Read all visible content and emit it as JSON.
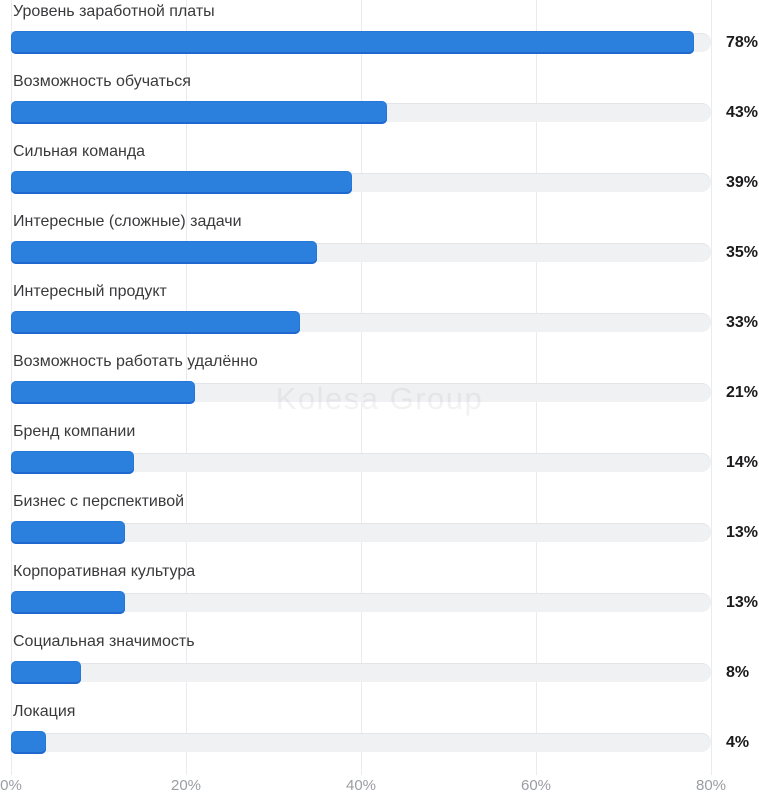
{
  "watermark": "Kolesa Group",
  "colors": {
    "bar": "#2a80dc",
    "bar_edge": "#1f68cf",
    "track": "#f0f1f3",
    "track_edge": "#e4e5e8",
    "grid": "#ebebee",
    "label": "#3a3a3c",
    "value": "#1a1a1c",
    "axis": "#9a9da2",
    "wm": "rgba(125,125,140,0.10)"
  },
  "chart_data": {
    "type": "bar",
    "orientation": "horizontal",
    "title": "",
    "xlabel": "",
    "ylabel": "",
    "categories": [
      "Уровень заработной платы",
      "Возможность обучаться",
      "Сильная команда",
      "Интересные (сложные) задачи",
      "Интересный продукт",
      "Возможность работать удалённо",
      "Бренд компании",
      "Бизнес с перспективой",
      "Корпоративная культура",
      "Социальная значимость",
      "Локация"
    ],
    "values": [
      78,
      43,
      39,
      35,
      33,
      21,
      14,
      13,
      13,
      8,
      4
    ],
    "value_labels": [
      "78%",
      "43%",
      "39%",
      "35%",
      "33%",
      "21%",
      "14%",
      "13%",
      "13%",
      "8%",
      "4%"
    ],
    "xlim": [
      0,
      80
    ],
    "x_tick_values": [
      0,
      20,
      40,
      60,
      80
    ],
    "x_ticks": [
      "0%",
      "20%",
      "40%",
      "60%",
      "80%"
    ],
    "grid": true,
    "legend": false
  }
}
